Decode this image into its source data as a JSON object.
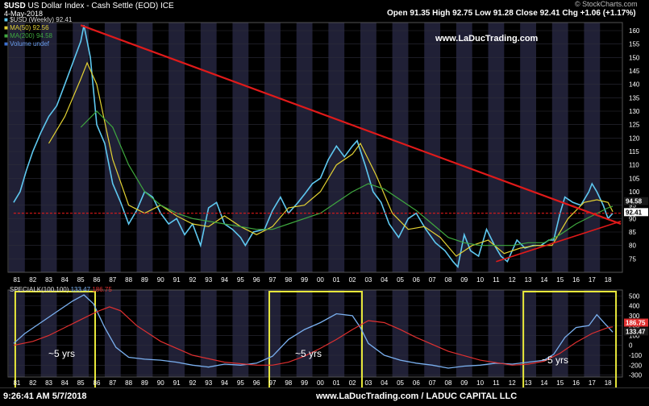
{
  "header": {
    "symbol": "$USD",
    "name": "US Dollar Index - Cash Settle (EOD)",
    "exchange": "ICE",
    "date": "4-May-2018",
    "ohlc": {
      "open_label": "Open",
      "open": "91.35",
      "high_label": "High",
      "high": "92.75",
      "low_label": "Low",
      "low": "91.28",
      "close_label": "Close",
      "close": "92.41",
      "chg_label": "Chg",
      "chg": "+1.06 (+1.17%)"
    },
    "brand": "© StockCharts.com",
    "site": "www.LaDucTrading.com"
  },
  "legend": [
    {
      "label": "$USD (Weekly) 92.41",
      "color": "#5ec8f0"
    },
    {
      "label": "MA(50) 92.56",
      "color": "#e3d233"
    },
    {
      "label": "MA(200) 94.58",
      "color": "#3fa83f"
    },
    {
      "label": "Volume undef",
      "color": "#3b6fd1"
    }
  ],
  "lower_legend": {
    "label": "SPECIALK(100,100)",
    "v1": "133.47",
    "v2": "186.75"
  },
  "annotations": [
    "~5 yrs",
    "~5 yrs",
    "~5 yrs"
  ],
  "footer": {
    "time": "9:26:41 AM 5/7/2018",
    "credit": "www.LaDucTrading.com / LADUC CAPITAL LLC"
  },
  "colors": {
    "price": "#5ec8f0",
    "ma50": "#e3d233",
    "ma200": "#3fa83f",
    "trend": "#e01a1a",
    "band": "#202036",
    "box": "#e8e83a",
    "osc": "#7ab0f0",
    "signal": "#e03030"
  },
  "chart_data": [
    {
      "type": "line",
      "title": "$USD US Dollar Index - Cash Settle (EOD)",
      "x_ticks": [
        "81",
        "82",
        "83",
        "84",
        "85",
        "86",
        "87",
        "88",
        "89",
        "90",
        "91",
        "92",
        "93",
        "94",
        "95",
        "96",
        "97",
        "98",
        "99",
        "00",
        "01",
        "02",
        "03",
        "04",
        "05",
        "06",
        "07",
        "08",
        "09",
        "10",
        "11",
        "12",
        "13",
        "14",
        "15",
        "16",
        "17",
        "18"
      ],
      "y_ticks": [
        75,
        80,
        85,
        90,
        95,
        100,
        105,
        110,
        115,
        120,
        125,
        130,
        135,
        140,
        145,
        150,
        155,
        160
      ],
      "ylim": [
        70,
        163
      ],
      "price_labels": {
        "ma200": "94.58",
        "price": "92.41"
      },
      "series": [
        {
          "name": "$USD (Weekly)",
          "x": [
            1980.8,
            1981.2,
            1981.6,
            1982.0,
            1982.5,
            1983.0,
            1983.5,
            1984.0,
            1984.5,
            1985.0,
            1985.2,
            1985.6,
            1986.0,
            1986.5,
            1987.0,
            1987.5,
            1988.0,
            1988.5,
            1989.0,
            1989.5,
            1990.0,
            1990.5,
            1991.0,
            1991.5,
            1992.0,
            1992.5,
            1993.0,
            1993.5,
            1994.0,
            1994.5,
            1995.0,
            1995.3,
            1995.8,
            1996.5,
            1997.0,
            1997.5,
            1998.0,
            1998.6,
            1999.0,
            1999.5,
            2000.0,
            2000.5,
            2001.0,
            2001.5,
            2002.0,
            2002.3,
            2002.8,
            2003.3,
            2003.8,
            2004.3,
            2004.9,
            2005.5,
            2006.0,
            2006.6,
            2007.2,
            2007.8,
            2008.3,
            2008.6,
            2009.0,
            2009.4,
            2009.9,
            2010.4,
            2010.9,
            2011.3,
            2011.7,
            2012.3,
            2012.8,
            2013.3,
            2013.8,
            2014.3,
            2014.6,
            2015.0,
            2015.3,
            2015.8,
            2016.3,
            2016.8,
            2017.0,
            2017.3,
            2017.7,
            2018.0,
            2018.3
          ],
          "y": [
            96,
            100,
            108,
            115,
            122,
            128,
            132,
            140,
            148,
            156,
            162,
            150,
            125,
            118,
            103,
            96,
            88,
            93,
            100,
            98,
            92,
            88,
            90,
            84,
            88,
            80,
            94,
            96,
            88,
            86,
            83,
            80,
            85,
            86,
            93,
            98,
            92,
            96,
            99,
            103,
            105,
            112,
            117,
            113,
            117,
            119,
            110,
            100,
            96,
            88,
            83,
            90,
            92,
            86,
            81,
            78,
            74,
            72,
            84,
            78,
            76,
            86,
            80,
            76,
            74,
            82,
            79,
            80,
            80,
            82,
            82,
            92,
            98,
            96,
            95,
            100,
            103,
            100,
            95,
            90,
            92
          ]
        },
        {
          "name": "MA(50)",
          "x": [
            1983.0,
            1984.0,
            1985.0,
            1985.4,
            1986.0,
            1987.0,
            1988.0,
            1989.0,
            1990.0,
            1991.0,
            1992.0,
            1993.0,
            1994.0,
            1995.0,
            1996.0,
            1997.0,
            1998.0,
            1999.0,
            2000.0,
            2001.0,
            2002.0,
            2002.5,
            2003.5,
            2004.5,
            2005.5,
            2006.5,
            2007.5,
            2008.5,
            2009.5,
            2010.5,
            2011.5,
            2012.5,
            2013.5,
            2014.5,
            2015.5,
            2016.5,
            2017.3,
            2018.0,
            2018.3
          ],
          "y": [
            118,
            128,
            142,
            148,
            140,
            112,
            95,
            92,
            95,
            91,
            88,
            87,
            91,
            87,
            84,
            87,
            94,
            95,
            100,
            110,
            114,
            118,
            106,
            92,
            86,
            87,
            83,
            76,
            80,
            82,
            77,
            79,
            80,
            80,
            90,
            96,
            97,
            96,
            92.56
          ]
        },
        {
          "name": "MA(200)",
          "x": [
            1985.0,
            1986.0,
            1987.0,
            1988.0,
            1989.0,
            1990.0,
            1991.0,
            1992.0,
            1993.0,
            1994.0,
            1995.0,
            1996.0,
            1997.0,
            1998.0,
            1999.0,
            2000.0,
            2001.0,
            2002.0,
            2003.0,
            2004.0,
            2005.0,
            2006.0,
            2007.0,
            2008.0,
            2009.0,
            2010.0,
            2011.0,
            2012.0,
            2013.0,
            2014.0,
            2015.0,
            2016.0,
            2017.0,
            2018.0,
            2018.3
          ],
          "y": [
            124,
            130,
            124,
            110,
            100,
            95,
            92,
            90,
            89,
            88,
            87,
            86,
            86,
            88,
            90,
            92,
            96,
            100,
            103,
            101,
            97,
            93,
            88,
            83,
            81,
            80,
            80,
            80,
            81,
            81,
            84,
            88,
            91,
            94,
            94.58
          ]
        },
        {
          "name": "Trend line (down)",
          "x": [
            1985.0,
            2018.8
          ],
          "y": [
            162,
            88
          ]
        },
        {
          "name": "Trend line (up)",
          "x": [
            2011.0,
            2018.8
          ],
          "y": [
            74,
            89
          ]
        },
        {
          "name": "Horizontal level",
          "x": [
            1980.8,
            2018.8
          ],
          "y": [
            92,
            92
          ]
        }
      ]
    },
    {
      "type": "line",
      "title": "SPECIALK(100,100)",
      "x_ticks": [
        "81",
        "82",
        "83",
        "84",
        "85",
        "86",
        "87",
        "88",
        "89",
        "90",
        "91",
        "92",
        "93",
        "94",
        "95",
        "96",
        "97",
        "98",
        "99",
        "00",
        "01",
        "02",
        "03",
        "04",
        "05",
        "06",
        "07",
        "08",
        "09",
        "10",
        "11",
        "12",
        "13",
        "14",
        "15",
        "16",
        "17",
        "18"
      ],
      "y_ticks": [
        -300,
        -200,
        -100,
        0,
        100,
        200,
        300,
        400,
        500
      ],
      "ylim": [
        -320,
        560
      ],
      "price_labels": {
        "signal": "186.75",
        "specialk": "133.47"
      },
      "highlight_years": [
        [
          1980.9,
          1985.9
        ],
        [
          1996.8,
          2002.6
        ],
        [
          2012.7,
          2018.5
        ]
      ],
      "series": [
        {
          "name": "SPECIALK",
          "x": [
            1980.8,
            1981.5,
            1982.5,
            1983.5,
            1984.5,
            1985.2,
            1985.8,
            1986.5,
            1987.2,
            1988.0,
            1989.0,
            1990.0,
            1991.0,
            1992.0,
            1993.0,
            1994.0,
            1995.0,
            1996.0,
            1997.0,
            1998.0,
            1999.0,
            2000.0,
            2001.0,
            2002.0,
            2002.5,
            2003.0,
            2004.0,
            2005.0,
            2006.0,
            2007.0,
            2008.0,
            2009.0,
            2010.0,
            2011.0,
            2012.0,
            2013.0,
            2014.0,
            2014.6,
            2015.3,
            2016.0,
            2016.8,
            2017.3,
            2017.8,
            2018.3
          ],
          "y": [
            20,
            120,
            230,
            340,
            450,
            510,
            420,
            180,
            -20,
            -120,
            -140,
            -150,
            -170,
            -200,
            -220,
            -190,
            -200,
            -180,
            -110,
            60,
            160,
            230,
            320,
            300,
            180,
            20,
            -100,
            -150,
            -180,
            -200,
            -230,
            -210,
            -200,
            -180,
            -190,
            -170,
            -150,
            -90,
            80,
            180,
            200,
            310,
            220,
            133.47
          ]
        },
        {
          "name": "Signal",
          "x": [
            1980.8,
            1982.0,
            1983.0,
            1984.0,
            1985.0,
            1986.0,
            1986.8,
            1987.5,
            1988.5,
            1990.0,
            1992.0,
            1994.0,
            1996.0,
            1997.0,
            1998.0,
            1999.0,
            2000.0,
            2001.0,
            2002.0,
            2003.0,
            2004.0,
            2005.0,
            2006.0,
            2008.0,
            2010.0,
            2012.0,
            2013.0,
            2014.0,
            2015.0,
            2016.0,
            2017.0,
            2018.0,
            2018.3
          ],
          "y": [
            0,
            40,
            100,
            180,
            260,
            340,
            390,
            350,
            200,
            40,
            -100,
            -170,
            -200,
            -200,
            -170,
            -110,
            -30,
            60,
            160,
            250,
            230,
            160,
            80,
            -60,
            -150,
            -200,
            -190,
            -160,
            -80,
            30,
            120,
            180,
            186.75
          ]
        }
      ]
    }
  ]
}
